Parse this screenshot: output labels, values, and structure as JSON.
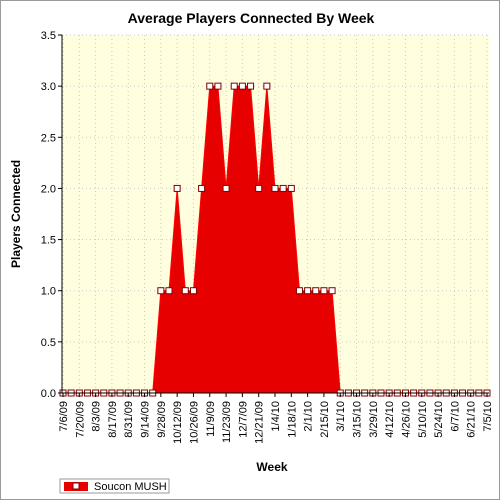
{
  "chart_data": {
    "type": "area",
    "title": "Average Players Connected By Week",
    "xlabel": "Week",
    "ylabel": "Players Connected",
    "ylim": [
      0,
      3.5
    ],
    "yticks": [
      "0.0",
      "0.5",
      "1.0",
      "1.5",
      "2.0",
      "2.5",
      "3.0",
      "3.5"
    ],
    "grid": true,
    "legend_position": "bottom-left",
    "x": [
      "7/6/09",
      "7/13/09",
      "7/20/09",
      "7/27/09",
      "8/3/09",
      "8/10/09",
      "8/17/09",
      "8/24/09",
      "8/31/09",
      "9/7/09",
      "9/14/09",
      "9/21/09",
      "9/28/09",
      "10/5/09",
      "10/12/09",
      "10/19/09",
      "10/26/09",
      "11/2/09",
      "11/9/09",
      "11/16/09",
      "11/23/09",
      "11/30/09",
      "12/7/09",
      "12/14/09",
      "12/21/09",
      "12/28/09",
      "1/4/10",
      "1/11/10",
      "1/18/10",
      "1/25/10",
      "2/1/10",
      "2/8/10",
      "2/15/10",
      "2/22/10",
      "3/1/10",
      "3/8/10",
      "3/15/10",
      "3/22/10",
      "3/29/10",
      "4/5/10",
      "4/12/10",
      "4/19/10",
      "4/26/10",
      "5/3/10",
      "5/10/10",
      "5/17/10",
      "5/24/10",
      "5/31/10",
      "6/7/10",
      "6/14/10",
      "6/21/10",
      "6/28/10",
      "7/5/10"
    ],
    "x_tick_labels": [
      "7/6/09",
      "7/20/09",
      "8/3/09",
      "8/17/09",
      "8/31/09",
      "9/14/09",
      "9/28/09",
      "10/12/09",
      "10/26/09",
      "11/9/09",
      "11/23/09",
      "12/7/09",
      "12/21/09",
      "1/4/10",
      "1/18/10",
      "2/1/10",
      "2/15/10",
      "3/1/10",
      "3/15/10",
      "3/29/10",
      "4/12/10",
      "4/26/10",
      "5/10/10",
      "5/24/10",
      "6/7/10",
      "6/21/10",
      "7/5/10"
    ],
    "series": [
      {
        "name": "Soucon MUSH",
        "color": "#e60000",
        "values": [
          0,
          0,
          0,
          0,
          0,
          0,
          0,
          0,
          0,
          0,
          0,
          0,
          1,
          1,
          2,
          1,
          1,
          2,
          3,
          3,
          2,
          3,
          3,
          3,
          2,
          3,
          2,
          2,
          2,
          1,
          1,
          1,
          1,
          1,
          0,
          0,
          0,
          0,
          0,
          0,
          0,
          0,
          0,
          0,
          0,
          0,
          0,
          0,
          0,
          0,
          0,
          0,
          0
        ]
      }
    ]
  },
  "colors": {
    "plot_background": "#ffffe0",
    "grid": "#c8c8c8",
    "area_fill": "#e60000",
    "area_edge": "#ff0000",
    "marker_fill": "#ffffff",
    "marker_edge": "#800000"
  }
}
